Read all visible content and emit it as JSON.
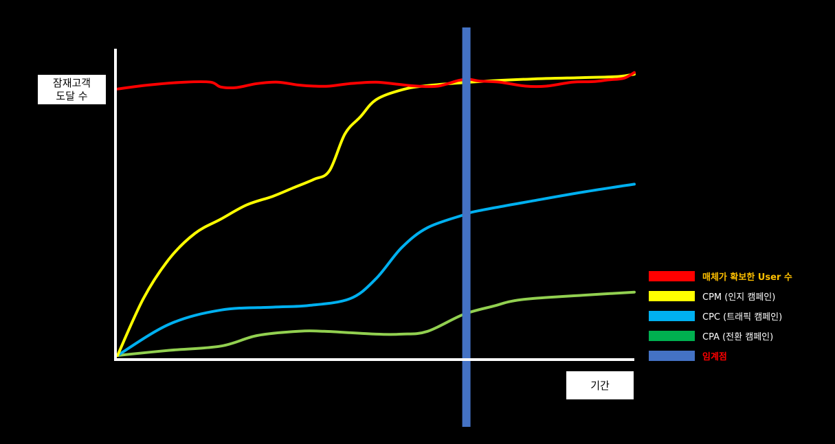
{
  "chart_data": {
    "type": "line",
    "title": "",
    "ylabel_lines": [
      "잠재고객",
      "도달 수"
    ],
    "xlabel": "기간",
    "x_range": [
      0,
      100
    ],
    "y_range": [
      0,
      100
    ],
    "grid": false,
    "legend_position": "right",
    "series": [
      {
        "name": "매체가 확보한 User 수",
        "color": "#ff0000",
        "label_color": "#ffc000",
        "label_bold": true,
        "x": [
          0,
          6,
          13,
          18,
          20,
          23,
          27,
          31,
          35,
          38,
          41,
          45,
          50,
          54,
          58,
          62,
          66,
          68,
          70,
          74,
          79,
          83,
          88,
          92,
          95,
          98,
          100
        ],
        "values": [
          93.8,
          95.2,
          96.2,
          96.2,
          94.5,
          94.3,
          95.7,
          96.2,
          95.2,
          94.8,
          94.8,
          95.7,
          96.2,
          95.5,
          94.8,
          94.8,
          96.8,
          97.2,
          96.6,
          96.2,
          94.8,
          94.8,
          96.2,
          96.4,
          97.0,
          97.6,
          99.6
        ]
      },
      {
        "name": "CPM (인지 캠페인)",
        "color": "#ffff00",
        "label_color": "#ffffff",
        "label_bold": false,
        "x": [
          0,
          5,
          10,
          15,
          20,
          25,
          30,
          34,
          38,
          41,
          44,
          47,
          50,
          55,
          60,
          70,
          80,
          90,
          97,
          100
        ],
        "values": [
          0,
          20,
          34,
          43,
          48,
          53,
          56,
          59,
          62,
          65,
          78,
          84,
          90,
          93.5,
          95,
          96.4,
          97.3,
          97.8,
          98.2,
          99.0
        ]
      },
      {
        "name": "CPC (트래픽 캠페인)",
        "color": "#00b0f0",
        "label_color": "#ffffff",
        "label_bold": false,
        "x": [
          0,
          10,
          20,
          30,
          37,
          45,
          50,
          55,
          60,
          67,
          70,
          80,
          90,
          100
        ],
        "values": [
          0,
          11,
          16,
          17,
          17.6,
          20,
          27,
          38,
          45,
          49.5,
          51,
          54.3,
          57.5,
          60.3
        ]
      },
      {
        "name": "CPA (전환 캠페인)",
        "color": "#92d050",
        "label_color": "#ffffff",
        "label_bold": false,
        "x": [
          0,
          10,
          20,
          27,
          35,
          40,
          50,
          55,
          60,
          67,
          73,
          76,
          80,
          90,
          100
        ],
        "values": [
          0,
          1.8,
          3.3,
          7,
          8.5,
          8.5,
          7.5,
          7.5,
          8.5,
          14.5,
          17.5,
          19,
          20,
          21.2,
          22.3
        ]
      }
    ],
    "threshold": {
      "name": "임계점",
      "x": 67.5,
      "color": "#4472c4",
      "label_color": "#ff0000",
      "label_bold": true
    },
    "legend_swatch_colors": [
      "#ff0000",
      "#ffff00",
      "#00b0f0",
      "#00b050",
      "#4472c4"
    ]
  }
}
